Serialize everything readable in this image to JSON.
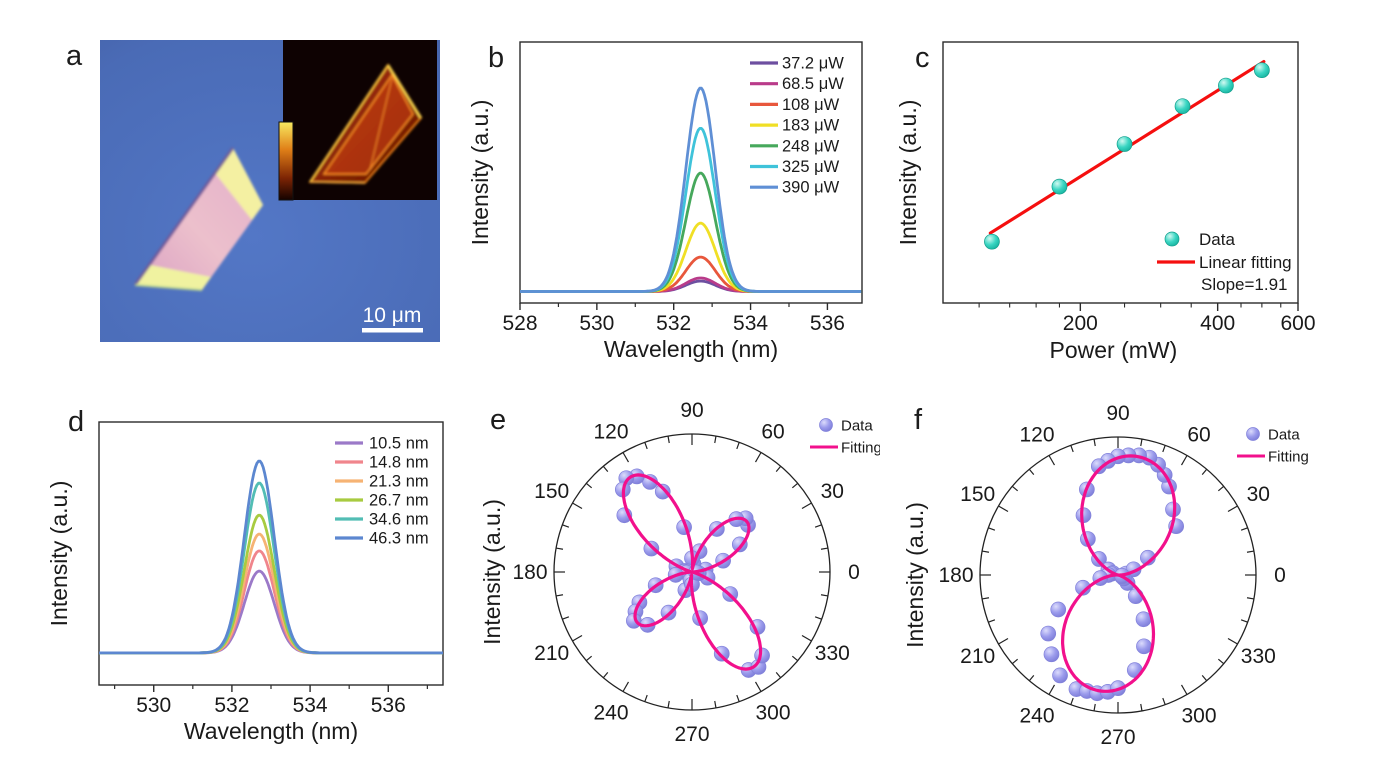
{
  "panels": {
    "a": {
      "label": "a",
      "scale_bar": "10 μm"
    },
    "b": {
      "label": "b"
    },
    "c": {
      "label": "c"
    },
    "d": {
      "label": "d"
    },
    "e": {
      "label": "e"
    },
    "f": {
      "label": "f"
    }
  },
  "chart_data": [
    {
      "id": "b",
      "type": "line",
      "xlabel": "Wavelength (nm)",
      "ylabel": "Intensity (a.u.)",
      "xlim": [
        528,
        536.9
      ],
      "xticks": [
        528,
        530,
        532,
        534,
        536
      ],
      "xticks_minor": [
        529,
        531,
        533,
        535
      ],
      "peak_center": 532.7,
      "peak_fwhm": 0.9,
      "baseline": 0.044,
      "series": [
        {
          "name": "37.2 μW",
          "color": "#6d4fa0",
          "height": 0.04
        },
        {
          "name": "68.5 μW",
          "color": "#b93b8a",
          "height": 0.052
        },
        {
          "name": "108 μW",
          "color": "#e8573c",
          "height": 0.132
        },
        {
          "name": "183 μW",
          "color": "#f0df25",
          "height": 0.262
        },
        {
          "name": "248 μW",
          "color": "#46a85c",
          "height": 0.454
        },
        {
          "name": "325 μW",
          "color": "#3fc3da",
          "height": 0.626
        },
        {
          "name": "390 μW",
          "color": "#5f8fd5",
          "height": 0.78
        }
      ]
    },
    {
      "id": "c",
      "type": "scatter",
      "xlabel": "Power (mW)",
      "ylabel": "Intensity (a.u.)",
      "xscale": "log",
      "yscale": "log",
      "xlim": [
        100,
        600
      ],
      "xticks": [
        200,
        400,
        600
      ],
      "xticks_minor": [
        120,
        140,
        160,
        180,
        250,
        300,
        350,
        450,
        500,
        550
      ],
      "points": [
        {
          "power_mW": 128,
          "intensity_rel": 0.235
        },
        {
          "power_mW": 180,
          "intensity_rel": 0.446
        },
        {
          "power_mW": 250,
          "intensity_rel": 0.609
        },
        {
          "power_mW": 335,
          "intensity_rel": 0.754
        },
        {
          "power_mW": 417,
          "intensity_rel": 0.833
        },
        {
          "power_mW": 500,
          "intensity_rel": 0.892
        }
      ],
      "fit": {
        "label": "Linear fitting",
        "color": "#f50f0f",
        "x1": 127,
        "y1": 0.268,
        "x2": 505,
        "y2": 0.925
      },
      "point_color": "#3bd6c3",
      "legend_data_label": "Data",
      "annotation": "Slope=1.91"
    },
    {
      "id": "d",
      "type": "line",
      "xlabel": "Wavelength (nm)",
      "ylabel": "Intensity (a.u.)",
      "xlim": [
        528.6,
        537.4
      ],
      "xticks": [
        530,
        532,
        534,
        536
      ],
      "xticks_minor": [
        529,
        531,
        533,
        535,
        537
      ],
      "peak_center": 532.7,
      "peak_fwhm": 0.9,
      "baseline": 0.122,
      "series": [
        {
          "name": "10.5 nm",
          "color": "#9b79c8",
          "height": 0.311
        },
        {
          "name": "14.8 nm",
          "color": "#f0858c",
          "height": 0.388
        },
        {
          "name": "21.3 nm",
          "color": "#f6b374",
          "height": 0.452
        },
        {
          "name": "26.7 nm",
          "color": "#a8cb40",
          "height": 0.524
        },
        {
          "name": "34.6 nm",
          "color": "#52bdb4",
          "height": 0.646
        },
        {
          "name": "46.3 nm",
          "color": "#5c87d0",
          "height": 0.73
        }
      ]
    },
    {
      "id": "e",
      "type": "polar",
      "ylabel": "Intensity (a.u.)",
      "angle_labels_deg": [
        0,
        30,
        60,
        90,
        120,
        150,
        180,
        210,
        240,
        270,
        300,
        330
      ],
      "lobe_halfwidth_deg": 45,
      "fit_lobes": [
        {
          "angle_deg": 43,
          "amplitude": 0.54
        },
        {
          "angle_deg": 123,
          "amplitude": 0.82
        },
        {
          "angle_deg": 223,
          "amplitude": 0.54
        },
        {
          "angle_deg": 303,
          "amplitude": 0.82
        }
      ],
      "points": [
        [
          0,
          0.05
        ],
        [
          5,
          0.04
        ],
        [
          10,
          0.1
        ],
        [
          20,
          0.24
        ],
        [
          30,
          0.4
        ],
        [
          40,
          0.53
        ],
        [
          45,
          0.55
        ],
        [
          50,
          0.5
        ],
        [
          60,
          0.36
        ],
        [
          70,
          0.16
        ],
        [
          80,
          0.06
        ],
        [
          90,
          0.1
        ],
        [
          100,
          0.33
        ],
        [
          110,
          0.62
        ],
        [
          115,
          0.72
        ],
        [
          120,
          0.8
        ],
        [
          125,
          0.83
        ],
        [
          130,
          0.78
        ],
        [
          140,
          0.64
        ],
        [
          150,
          0.34
        ],
        [
          160,
          0.12
        ],
        [
          170,
          0.05
        ],
        [
          175,
          0.03
        ],
        [
          180,
          0.06
        ],
        [
          185,
          0.04
        ],
        [
          190,
          0.12
        ],
        [
          200,
          0.28
        ],
        [
          210,
          0.44
        ],
        [
          215,
          0.5
        ],
        [
          220,
          0.55
        ],
        [
          230,
          0.5
        ],
        [
          240,
          0.34
        ],
        [
          250,
          0.14
        ],
        [
          260,
          0.06
        ],
        [
          270,
          0.09
        ],
        [
          280,
          0.34
        ],
        [
          290,
          0.63
        ],
        [
          300,
          0.82
        ],
        [
          305,
          0.84
        ],
        [
          310,
          0.79
        ],
        [
          320,
          0.62
        ],
        [
          330,
          0.32
        ],
        [
          340,
          0.12
        ],
        [
          350,
          0.05
        ],
        [
          355,
          0.03
        ]
      ],
      "data_color": "#9b9bec",
      "fit_color": "#f2108c",
      "legend": {
        "data": "Data",
        "fitting": "Fitting"
      }
    },
    {
      "id": "f",
      "type": "polar",
      "ylabel": "Intensity (a.u.)",
      "angle_labels_deg": [
        0,
        30,
        60,
        90,
        120,
        150,
        180,
        210,
        240,
        270,
        300,
        330
      ],
      "lobe_halfwidth_deg": 90,
      "fit_lobes": [
        {
          "angle_deg": 81,
          "amplitude": 0.87
        },
        {
          "angle_deg": 261,
          "amplitude": 0.85
        }
      ],
      "points": [
        [
          0,
          0.04
        ],
        [
          10,
          0.06
        ],
        [
          20,
          0.12
        ],
        [
          30,
          0.25
        ],
        [
          40,
          0.55
        ],
        [
          50,
          0.62
        ],
        [
          60,
          0.74
        ],
        [
          65,
          0.8
        ],
        [
          70,
          0.85
        ],
        [
          75,
          0.88
        ],
        [
          80,
          0.88
        ],
        [
          85,
          0.87
        ],
        [
          90,
          0.86
        ],
        [
          95,
          0.83
        ],
        [
          100,
          0.8
        ],
        [
          110,
          0.66
        ],
        [
          120,
          0.5
        ],
        [
          130,
          0.34
        ],
        [
          140,
          0.18
        ],
        [
          150,
          0.08
        ],
        [
          160,
          0.04
        ],
        [
          170,
          0.05
        ],
        [
          180,
          0.07
        ],
        [
          190,
          0.13
        ],
        [
          200,
          0.27
        ],
        [
          210,
          0.5
        ],
        [
          220,
          0.66
        ],
        [
          230,
          0.75
        ],
        [
          240,
          0.84
        ],
        [
          250,
          0.88
        ],
        [
          255,
          0.87
        ],
        [
          260,
          0.87
        ],
        [
          265,
          0.85
        ],
        [
          270,
          0.82
        ],
        [
          280,
          0.7
        ],
        [
          290,
          0.55
        ],
        [
          300,
          0.37
        ],
        [
          310,
          0.2
        ],
        [
          320,
          0.09
        ],
        [
          330,
          0.05
        ],
        [
          340,
          0.03
        ],
        [
          350,
          0.03
        ]
      ],
      "data_color": "#9b9bec",
      "fit_color": "#f2108c",
      "legend": {
        "data": "Data",
        "fitting": "Fitting"
      }
    }
  ]
}
